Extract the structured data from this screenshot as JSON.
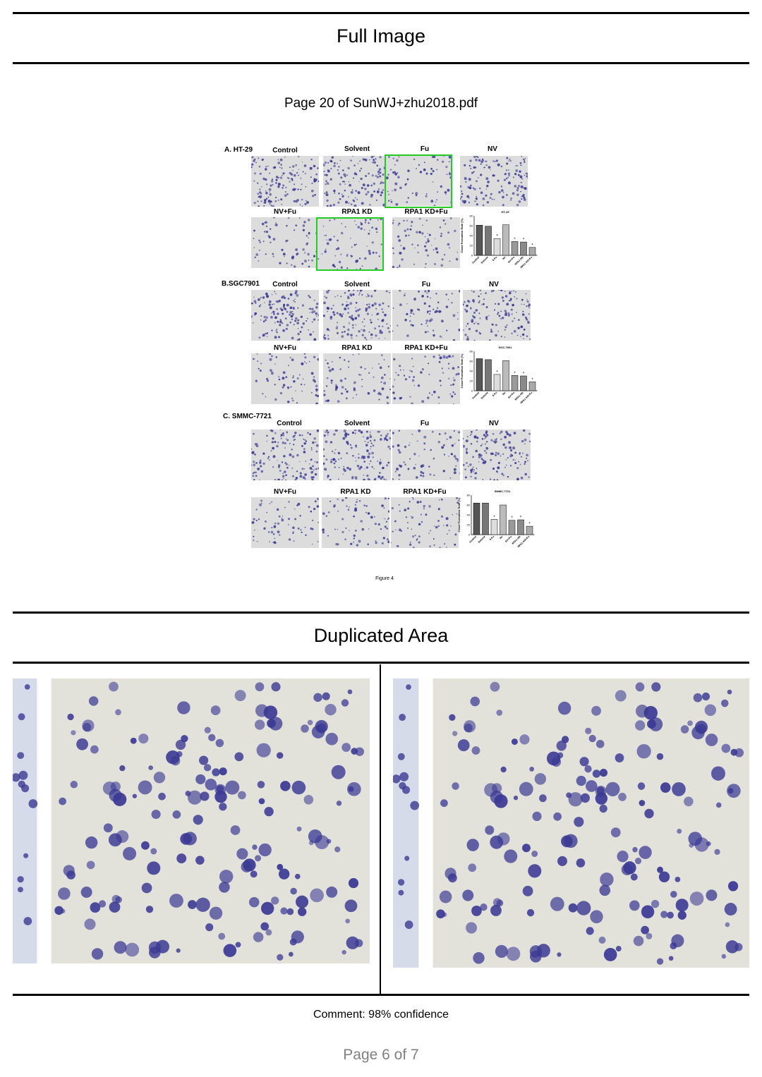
{
  "header": {
    "full_image_title": "Full Image",
    "duplicated_area_title": "Duplicated Area"
  },
  "source_caption": "Page 20 of SunWJ+zhu2018.pdf",
  "figure": {
    "panels": [
      {
        "label": "A. HT-29",
        "row1": [
          "Control",
          "Solvent",
          "Fu",
          "NV"
        ],
        "row2": [
          "NV+Fu",
          "RPA1 KD",
          "RPA1 KD+Fu"
        ],
        "chart": {
          "title": "HT-29",
          "ylabel": "Clone Formation Rate (%)",
          "categories": [
            "Control",
            "Solvent",
            "5-Fu",
            "NV",
            "NV+Fu",
            "RPA1 KD",
            "RPA1 KD+Fu"
          ],
          "values": [
            61,
            59,
            34,
            62,
            28,
            27,
            16
          ],
          "yticks": [
            "80",
            "60",
            "40",
            "20",
            "0"
          ],
          "ylim": [
            0,
            80
          ],
          "significant": [
            false,
            false,
            true,
            false,
            true,
            true,
            true
          ]
        }
      },
      {
        "label": "B.SGC7901",
        "row1": [
          "Control",
          "Solvent",
          "Fu",
          "NV"
        ],
        "row2": [
          "NV+Fu",
          "RPA1 KD",
          "RPA1 KD+Fu"
        ],
        "chart": {
          "title": "SGC-7901",
          "ylabel": "Clone Formation Rate (%)",
          "categories": [
            "Control",
            "Solvent",
            "5-Fu",
            "NV",
            "NV+Fu",
            "RPA1 KD",
            "RPA1 KD+Fu"
          ],
          "values": [
            65,
            63,
            33,
            61,
            31,
            30,
            18
          ],
          "yticks": [
            "80",
            "60",
            "40",
            "20",
            "0"
          ],
          "ylim": [
            0,
            80
          ],
          "significant": [
            false,
            false,
            true,
            false,
            true,
            true,
            true
          ]
        }
      },
      {
        "label": "C. SMMC-7721",
        "row1": [
          "Control",
          "Solvent",
          "Fu",
          "NV"
        ],
        "row2": [
          "NV+Fu",
          "RPA1 KD",
          "RPA1 KD+Fu"
        ],
        "chart": {
          "title": "SMMC-7721",
          "ylabel": "Clone Formation Rate (%)",
          "categories": [
            "Control",
            "Solvent",
            "5-Fu",
            "NV",
            "NV+Fu",
            "RPA1 KD",
            "RPA1 KD+Fu"
          ],
          "values": [
            64,
            64,
            31,
            60,
            29,
            30,
            17
          ],
          "yticks": [
            "80",
            "60",
            "40",
            "20",
            "0"
          ],
          "ylim": [
            0,
            80
          ],
          "significant": [
            false,
            false,
            true,
            false,
            true,
            true,
            true
          ]
        }
      }
    ],
    "caption": "Figure 4"
  },
  "comment": "Comment: 98% confidence",
  "pager": "Page 6 of 7",
  "colors": {
    "highlight": "#22cc22",
    "stain": "#3b3a94",
    "well_background": "#dcdcdc"
  }
}
